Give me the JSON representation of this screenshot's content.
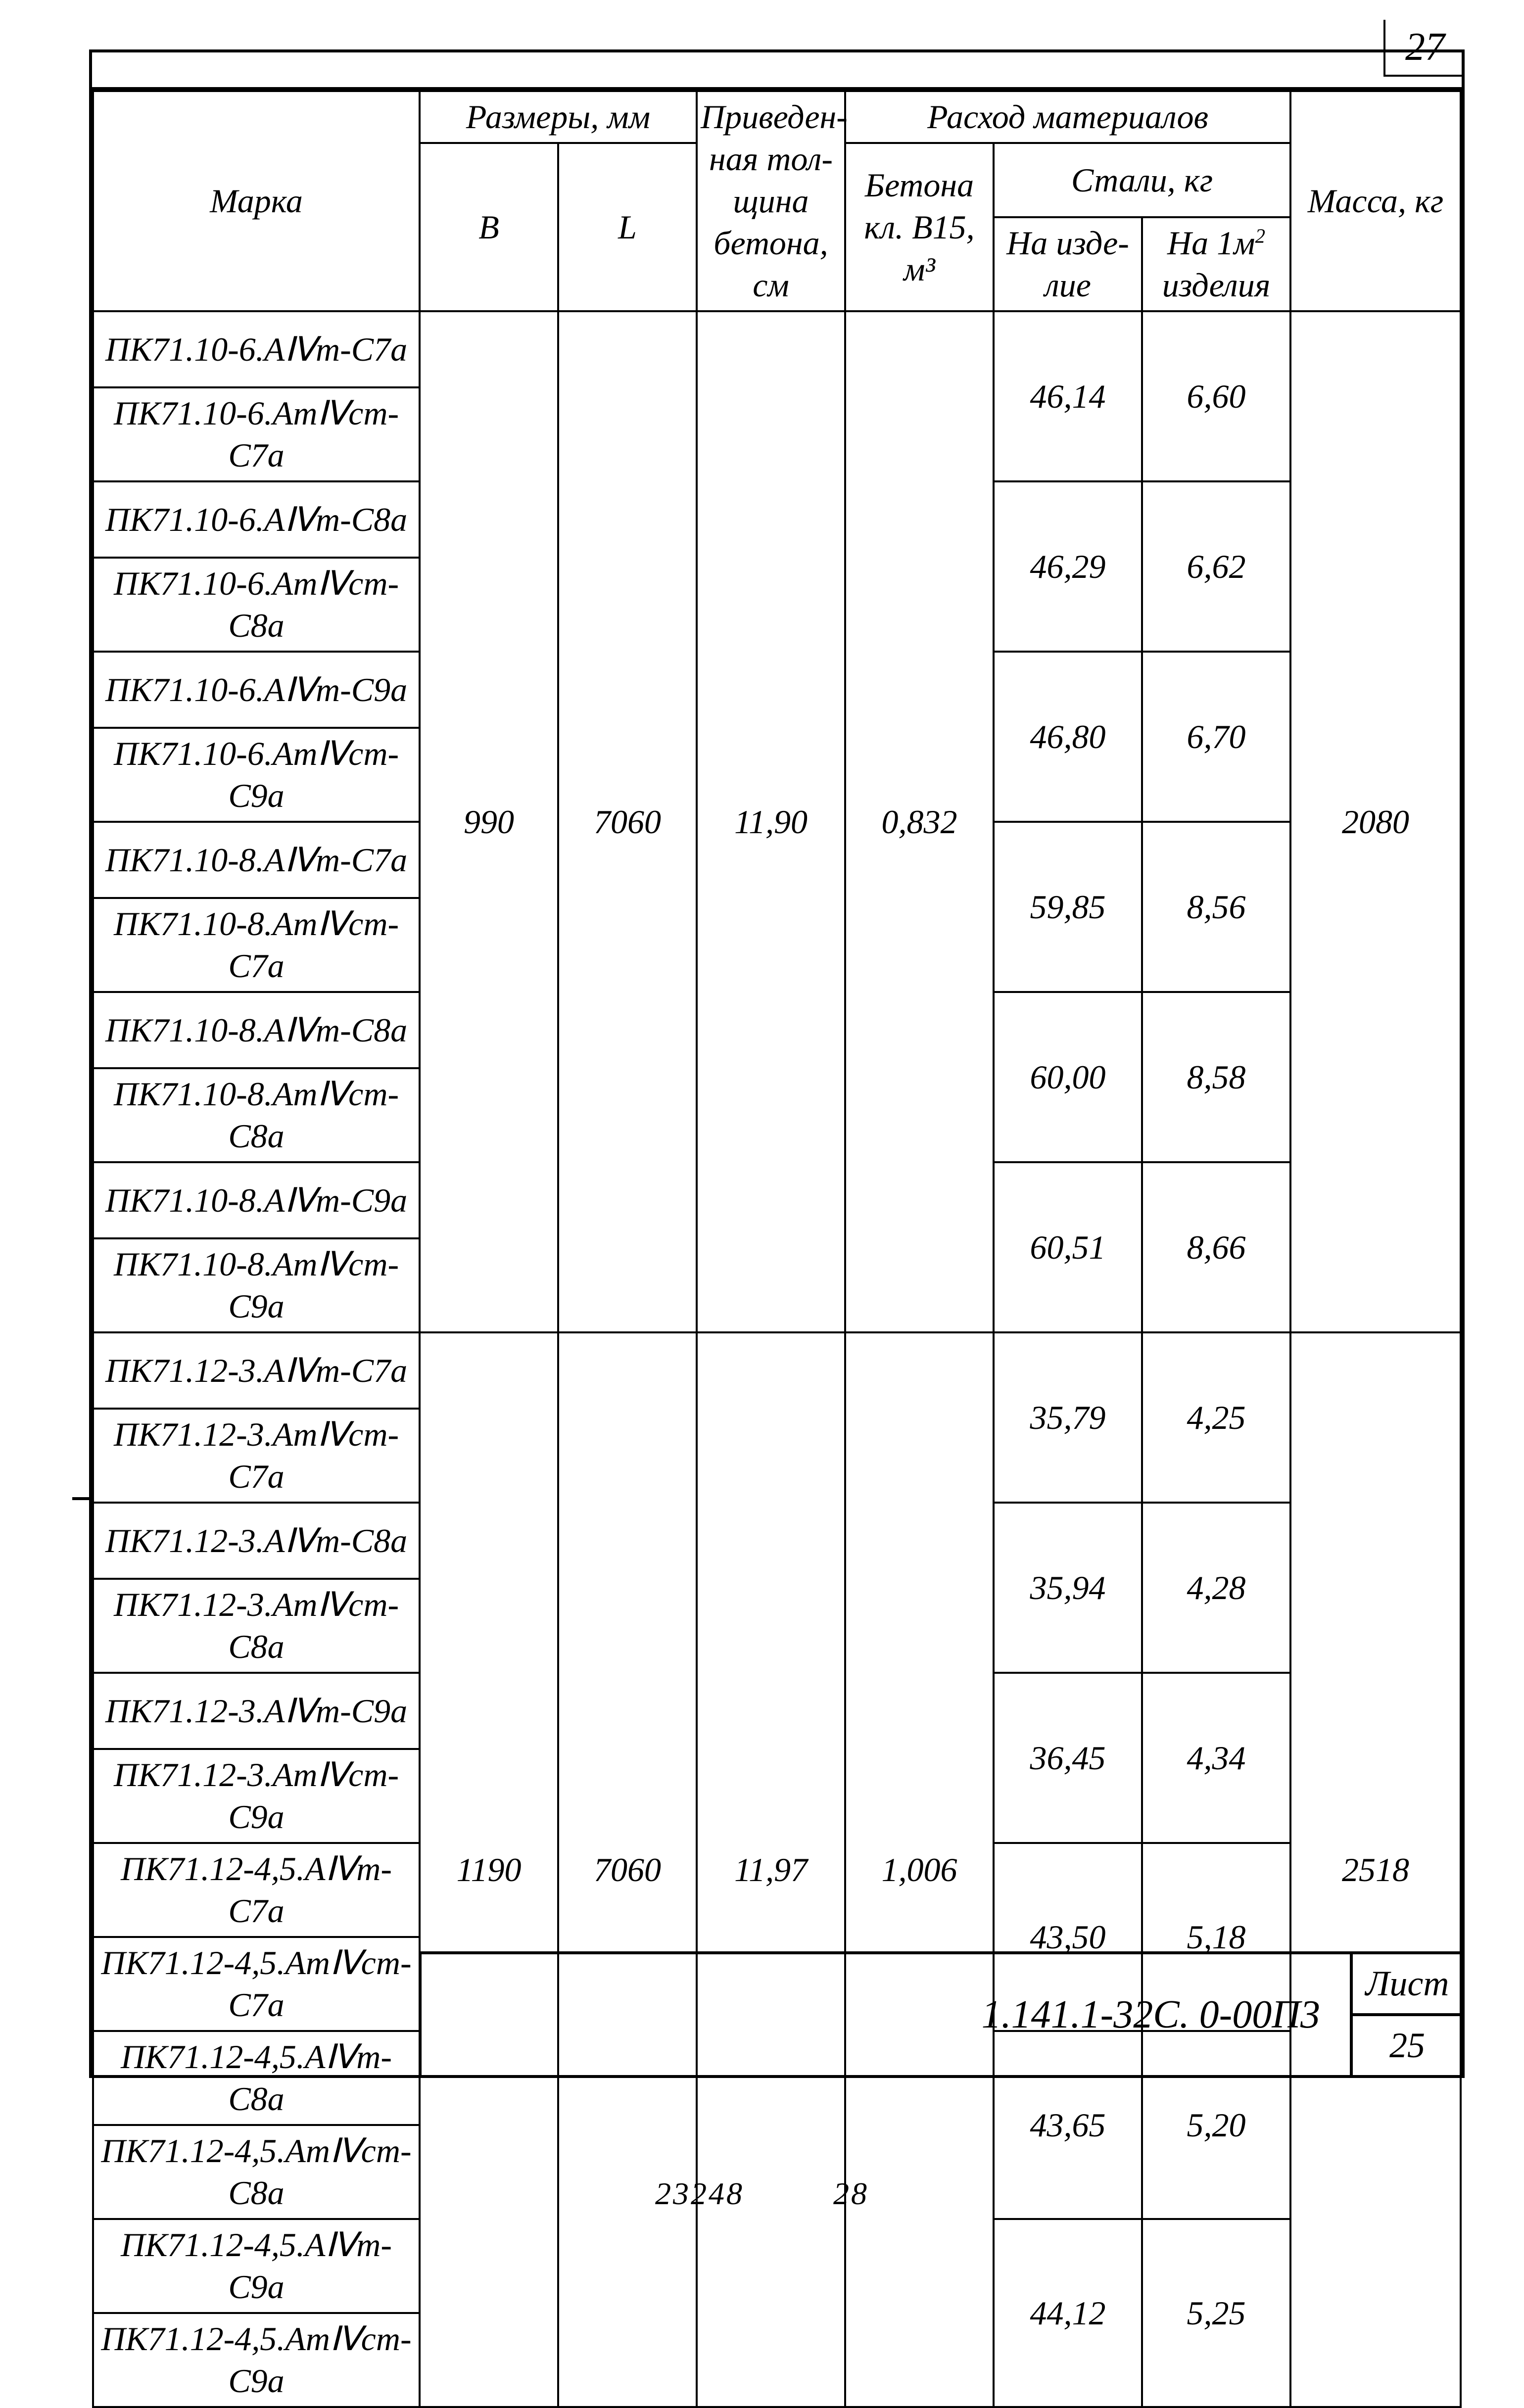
{
  "page_top_number": "27",
  "doc_code": "1.141.1-32С. 0-00П3",
  "sheet_label": "Лист",
  "sheet_number": "25",
  "bottom_left_num": "23248",
  "bottom_right_num": "28",
  "headers": {
    "marka": "Марка",
    "razmery": "Размеры, мм",
    "B": "B",
    "L": "L",
    "priveden": "Приведен-ная тол-щина бетона, см",
    "rashod": "Расход материалов",
    "beton": "Бетона кл. В15, м³",
    "stal": "Стали, кг",
    "na_izd": "На изде-лие",
    "na_m2_1": "На 1м",
    "na_m2_2": "изделия",
    "massa": "Масса, кг"
  },
  "groups": [
    {
      "B": "990",
      "L": "7060",
      "priv": "11,90",
      "beton": "0,832",
      "massa": "2080",
      "pairs": [
        {
          "m1": "ПК71.10-6.АⅣт-С7а",
          "m2": "ПК71.10-6.АтⅣст-С7а",
          "s1": "46,14",
          "s2": "6,60"
        },
        {
          "m1": "ПК71.10-6.АⅣт-С8а",
          "m2": "ПК71.10-6.АтⅣст-С8а",
          "s1": "46,29",
          "s2": "6,62"
        },
        {
          "m1": "ПК71.10-6.АⅣт-С9а",
          "m2": "ПК71.10-6.АтⅣст-С9а",
          "s1": "46,80",
          "s2": "6,70"
        },
        {
          "m1": "ПК71.10-8.АⅣт-С7а",
          "m2": "ПК71.10-8.АтⅣст-С7а",
          "s1": "59,85",
          "s2": "8,56"
        },
        {
          "m1": "ПК71.10-8.АⅣт-С8а",
          "m2": "ПК71.10-8.АтⅣст-С8а",
          "s1": "60,00",
          "s2": "8,58"
        },
        {
          "m1": "ПК71.10-8.АⅣт-С9а",
          "m2": "ПК71.10-8.АтⅣст-С9а",
          "s1": "60,51",
          "s2": "8,66"
        }
      ]
    },
    {
      "B": "1190",
      "L": "7060",
      "priv": "11,97",
      "beton": "1,006",
      "massa": "2518",
      "pairs": [
        {
          "m1": "ПК71.12-3.АⅣт-С7а",
          "m2": "ПК71.12-3.АтⅣст-С7а",
          "s1": "35,79",
          "s2": "4,25"
        },
        {
          "m1": "ПК71.12-3.АⅣт-С8а",
          "m2": "ПК71.12-3.АтⅣст-С8а",
          "s1": "35,94",
          "s2": "4,28"
        },
        {
          "m1": "ПК71.12-3.АⅣт-С9а",
          "m2": "ПК71.12-3.АтⅣст-С9а",
          "s1": "36,45",
          "s2": "4,34"
        },
        {
          "m1": "ПК71.12-4,5.АⅣт-С7а",
          "m2": "ПК71.12-4,5.АтⅣст-С7а",
          "s1": "43,50",
          "s2": "5,18"
        },
        {
          "m1": "ПК71.12-4,5.АⅣт-С8а",
          "m2": "ПК71.12-4,5.АтⅣст-С8а",
          "s1": "43,65",
          "s2": "5,20"
        },
        {
          "m1": "ПК71.12-4,5.АⅣт-С9а",
          "m2": "ПК71.12-4,5.АтⅣст-С9а",
          "s1": "44,12",
          "s2": "5,25"
        }
      ]
    }
  ]
}
